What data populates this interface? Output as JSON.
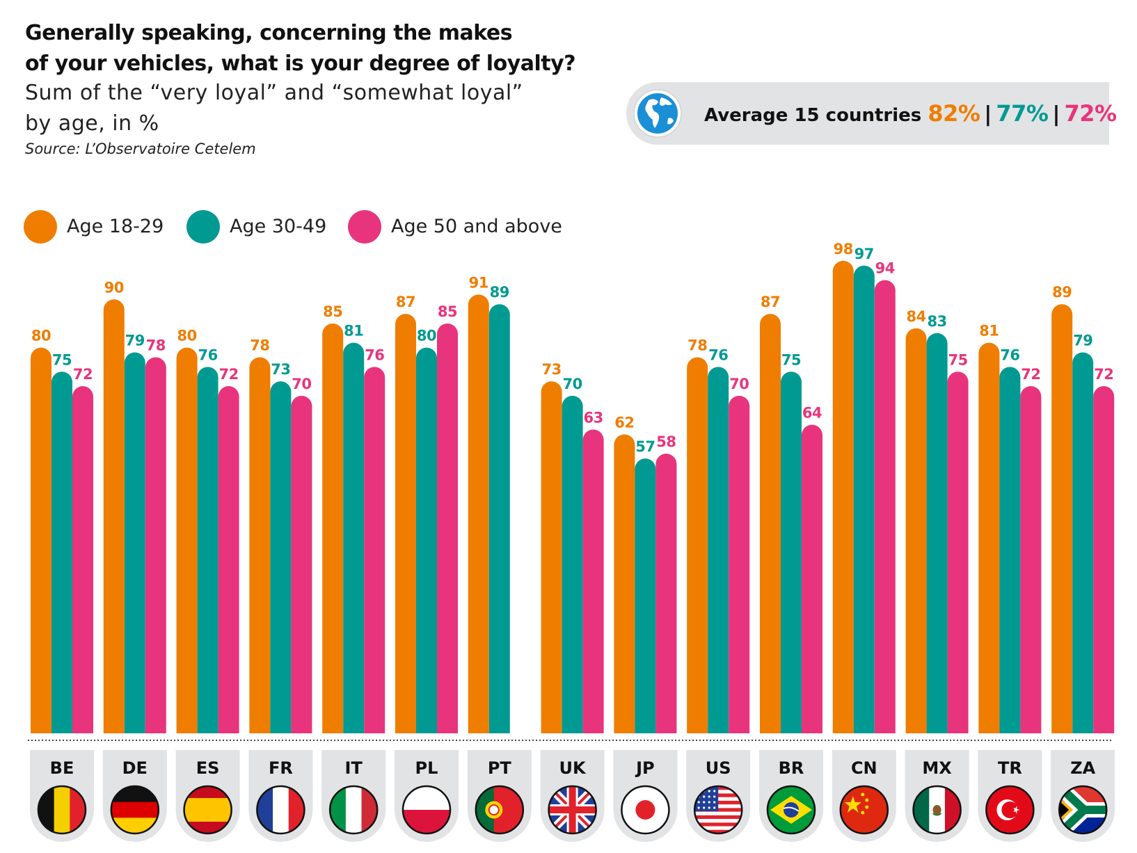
{
  "title_line1": "Generally speaking, concerning the makes",
  "title_line2": "of your vehicles, what is your degree of loyalty?",
  "subtitle_line1": "Sum of the “very loyal” and “somewhat loyal”",
  "subtitle_line2": "by age, in %",
  "source": "Source: L’Observatoire Cetelem",
  "average": {
    "label": "Average 15 countries",
    "values": [
      "82%",
      "77%",
      "72%"
    ],
    "globe_icon": "globe-icon"
  },
  "colors": {
    "age_18_29": "#ef7d00",
    "age_30_49": "#009a93",
    "age_50_plus": "#e8347c",
    "tab_bg": "#e2e3e4"
  },
  "legend": [
    {
      "label": "Age 18-29",
      "color": "#ef7d00"
    },
    {
      "label": "Age 30-49",
      "color": "#009a93"
    },
    {
      "label": "Age 50 and above",
      "color": "#e8347c"
    }
  ],
  "chart_data": {
    "type": "bar",
    "title": "Generally speaking, concerning the makes of your vehicles, what is your degree of loyalty?",
    "subtitle": "Sum of the “very loyal” and “somewhat loyal” by age, in %",
    "xlabel": "",
    "ylabel": "",
    "ylim": [
      0,
      100
    ],
    "grid": false,
    "legend_position": "top-left",
    "categories": [
      "BE",
      "DE",
      "ES",
      "FR",
      "IT",
      "PL",
      "PT",
      "UK",
      "JP",
      "US",
      "BR",
      "CN",
      "MX",
      "TR",
      "ZA"
    ],
    "series": [
      {
        "name": "Age 18-29",
        "color": "#ef7d00",
        "values": [
          80,
          90,
          80,
          78,
          85,
          87,
          91,
          73,
          62,
          78,
          87,
          98,
          84,
          81,
          89
        ]
      },
      {
        "name": "Age 30-49",
        "color": "#009a93",
        "values": [
          75,
          79,
          76,
          73,
          81,
          80,
          89,
          70,
          57,
          76,
          75,
          97,
          83,
          76,
          79
        ]
      },
      {
        "name": "Age 50 and above",
        "color": "#e8347c",
        "values": [
          72,
          78,
          72,
          70,
          76,
          85,
          null,
          63,
          58,
          70,
          64,
          94,
          75,
          72,
          72
        ]
      }
    ]
  },
  "flags": [
    "be-flag-icon",
    "de-flag-icon",
    "es-flag-icon",
    "fr-flag-icon",
    "it-flag-icon",
    "pl-flag-icon",
    "pt-flag-icon",
    "uk-flag-icon",
    "jp-flag-icon",
    "us-flag-icon",
    "br-flag-icon",
    "cn-flag-icon",
    "mx-flag-icon",
    "tr-flag-icon",
    "za-flag-icon"
  ]
}
